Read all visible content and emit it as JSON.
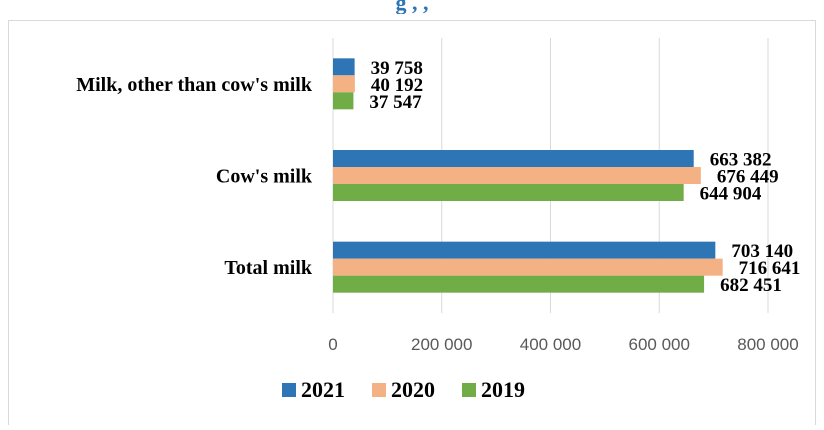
{
  "chart_data": {
    "type": "bar",
    "orientation": "horizontal",
    "title": "",
    "categories": [
      "Milk, other than cow's milk",
      "Cow's milk",
      "Total milk"
    ],
    "series": [
      {
        "name": "2021",
        "color": "#2e75b6",
        "values": [
          39758,
          663382,
          703140
        ],
        "labels": [
          "39 758",
          "663 382",
          "703 140"
        ]
      },
      {
        "name": "2020",
        "color": "#f4b183",
        "values": [
          40192,
          676449,
          716641
        ],
        "labels": [
          "40 192",
          "676 449",
          "716 641"
        ]
      },
      {
        "name": "2019",
        "color": "#70ad47",
        "values": [
          37547,
          644904,
          682451
        ],
        "labels": [
          "37 547",
          "644 904",
          "682 451"
        ]
      }
    ],
    "x_ticks": [
      "0",
      "200 000",
      "400 000",
      "600 000",
      "800 000"
    ],
    "xlim": [
      0,
      800000
    ],
    "grid": true,
    "legend": "bottom"
  }
}
